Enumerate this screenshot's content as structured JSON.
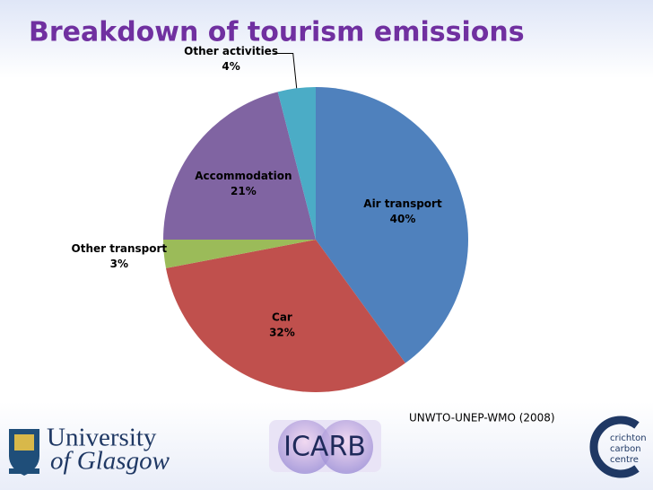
{
  "chart_data": {
    "type": "pie",
    "title": "Breakdown of tourism emissions",
    "categories": [
      "Air transport",
      "Car",
      "Other transport",
      "Accommodation",
      "Other activities"
    ],
    "values": [
      40,
      32,
      3,
      21,
      4
    ],
    "value_labels": [
      "40%",
      "32%",
      "3%",
      "21%",
      "4%"
    ],
    "colors": [
      "#4f81bd",
      "#c0504d",
      "#9bbb59",
      "#8064a2",
      "#4bacc6"
    ],
    "source": "UNWTO-UNEP-WMO (2008)"
  },
  "logos": {
    "university": [
      "University",
      "of Glasgow"
    ],
    "icarb": "ICARB",
    "crichton": [
      "crichton",
      "carbon",
      "centre"
    ]
  }
}
